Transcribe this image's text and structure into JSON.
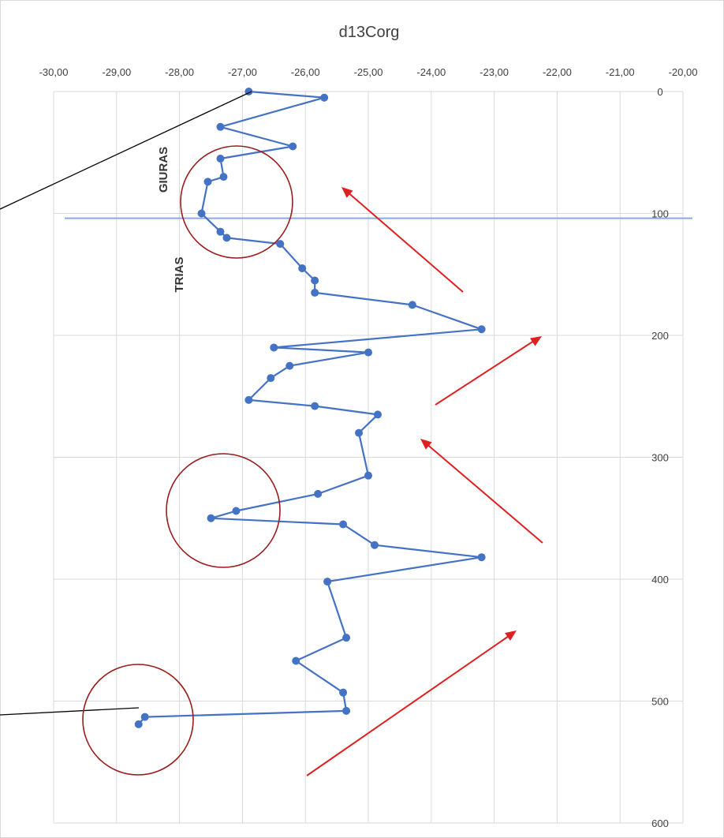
{
  "chart_data": {
    "type": "scatter",
    "title": "d13Corg",
    "xlim": [
      -30,
      -20
    ],
    "ylim": [
      0,
      600
    ],
    "y_reversed": true,
    "x_axis_position": "top",
    "y_axis_position": "right",
    "grid": true,
    "x_tick_labels": [
      "-30,00",
      "-29,00",
      "-28,00",
      "-27,00",
      "-26,00",
      "-25,00",
      "-24,00",
      "-23,00",
      "-22,00",
      "-21,00",
      "-20,00"
    ],
    "y_tick_labels": [
      "0",
      "100",
      "200",
      "300",
      "400",
      "500",
      "600"
    ],
    "series": [
      {
        "color": "#4472C4",
        "points": [
          [
            -26.9,
            0
          ],
          [
            -25.7,
            5
          ],
          [
            -27.35,
            29
          ],
          [
            -26.2,
            45
          ],
          [
            -27.35,
            55
          ],
          [
            -27.3,
            70
          ],
          [
            -27.55,
            74
          ],
          [
            -27.65,
            100
          ],
          [
            -27.35,
            115
          ],
          [
            -27.25,
            120
          ],
          [
            -26.4,
            125
          ],
          [
            -26.05,
            145
          ],
          [
            -25.85,
            155
          ],
          [
            -25.85,
            165
          ],
          [
            -24.3,
            175
          ],
          [
            -23.2,
            195
          ],
          [
            -26.5,
            210
          ],
          [
            -25.0,
            214
          ],
          [
            -26.25,
            225
          ],
          [
            -26.55,
            235
          ],
          [
            -26.9,
            253
          ],
          [
            -25.85,
            258
          ],
          [
            -24.85,
            265
          ],
          [
            -25.15,
            280
          ],
          [
            -25.0,
            315
          ],
          [
            -25.8,
            330
          ],
          [
            -27.1,
            344
          ],
          [
            -27.5,
            350
          ],
          [
            -25.4,
            355
          ],
          [
            -24.9,
            372
          ],
          [
            -23.2,
            382
          ],
          [
            -25.65,
            402
          ],
          [
            -25.35,
            448
          ],
          [
            -26.15,
            467
          ],
          [
            -25.4,
            493
          ],
          [
            -25.35,
            508
          ],
          [
            -28.55,
            513
          ],
          [
            -28.65,
            519
          ]
        ]
      }
    ],
    "annotations": {
      "zone_labels": [
        "GIURAS",
        "TRIAS"
      ],
      "boundary_depth": 104,
      "circle_color": "#9B1C1C",
      "arrow_color": "#E02020"
    }
  }
}
